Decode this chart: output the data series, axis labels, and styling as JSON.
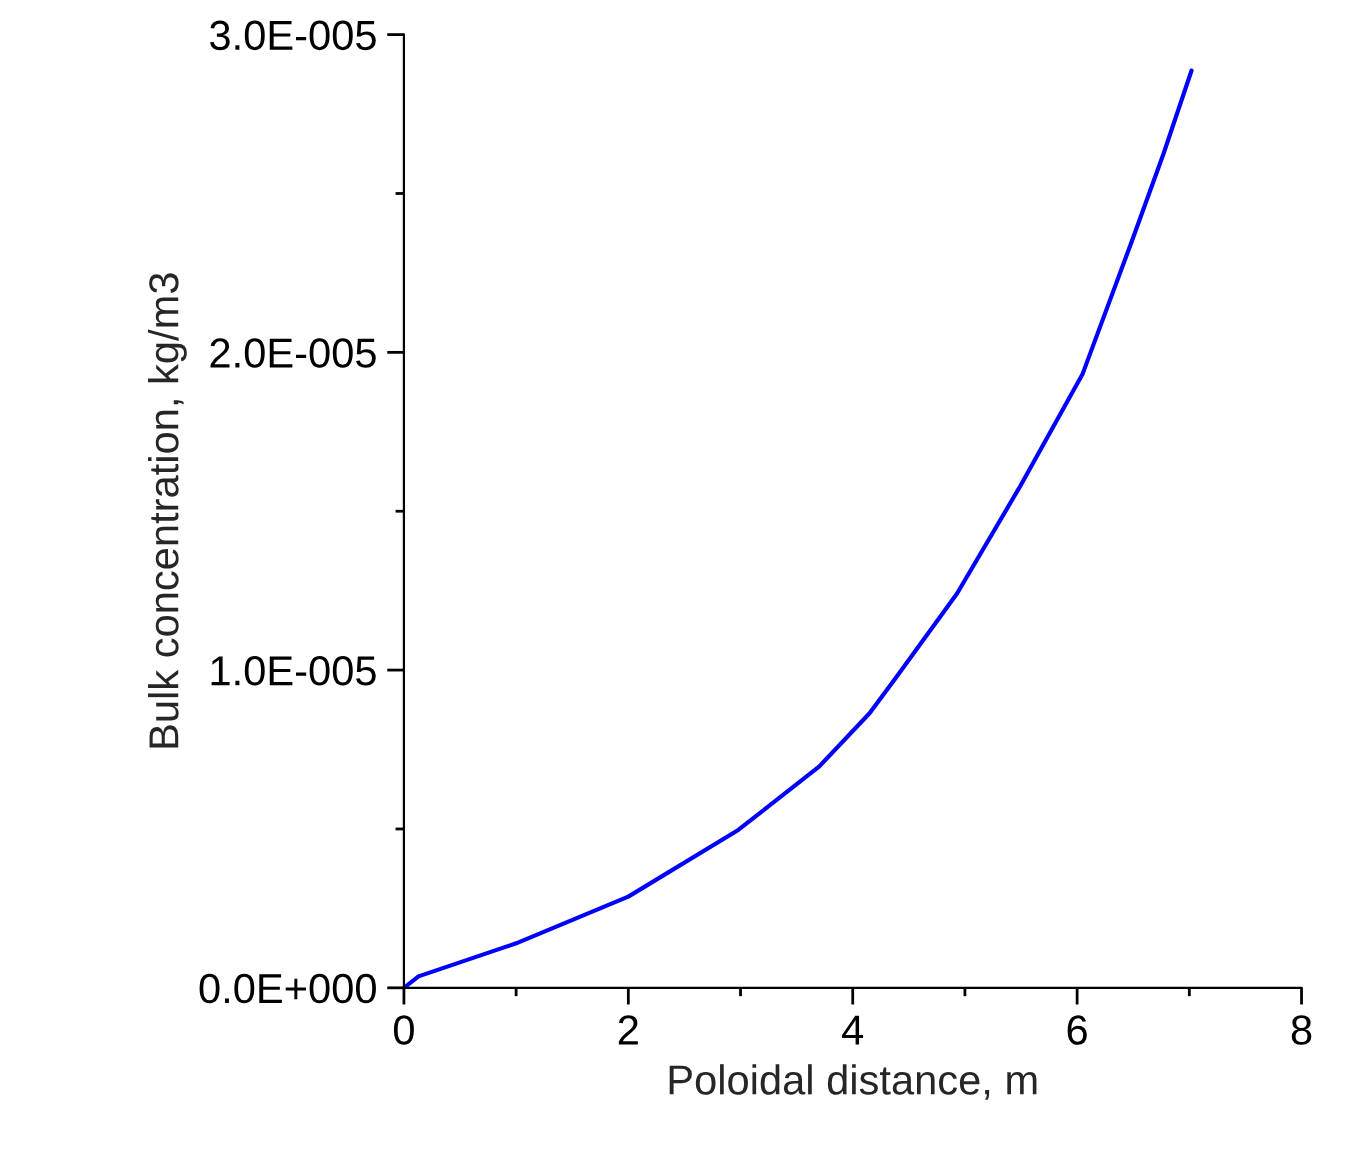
{
  "chart_data": {
    "type": "line",
    "xlabel": "Poloidal distance, m",
    "ylabel": "Bulk concentration, kg/m3",
    "series": [
      {
        "color": "#0000ff",
        "x": [
          0,
          0.13,
          1.0,
          2.0,
          2.98,
          3.7,
          4.15,
          4.37,
          4.93,
          5.49,
          6.05,
          6.49,
          6.77,
          7.02
        ],
        "values": [
          0,
          3.6e-07,
          1.4e-06,
          2.87e-06,
          4.97e-06,
          6.96e-06,
          8.64e-06,
          9.69e-06,
          1.241e-05,
          1.577e-05,
          1.933e-05,
          2.352e-05,
          2.625e-05,
          2.887e-05
        ]
      }
    ],
    "xlim": [
      0,
      8
    ],
    "xticks": [
      0,
      {
        "value": 1,
        "label": null
      },
      2,
      {
        "value": 3,
        "label": null
      },
      4,
      {
        "value": 5,
        "label": null
      },
      6,
      {
        "value": 7,
        "label": null
      },
      8
    ],
    "ylim": [
      0,
      3e-05
    ],
    "yticks": [
      {
        "value": 0,
        "label": "0.0E+000"
      },
      {
        "value": 5e-06,
        "label": null
      },
      {
        "value": 1e-05,
        "label": "1.0E-005"
      },
      {
        "value": 1.5e-05,
        "label": null
      },
      {
        "value": 2e-05,
        "label": "2.0E-005"
      },
      {
        "value": 2.5e-05,
        "label": null
      },
      {
        "value": 3e-05,
        "label": "3.0E-005"
      }
    ],
    "grid": false,
    "legend": false,
    "line_style": "solid",
    "marker": "none"
  }
}
